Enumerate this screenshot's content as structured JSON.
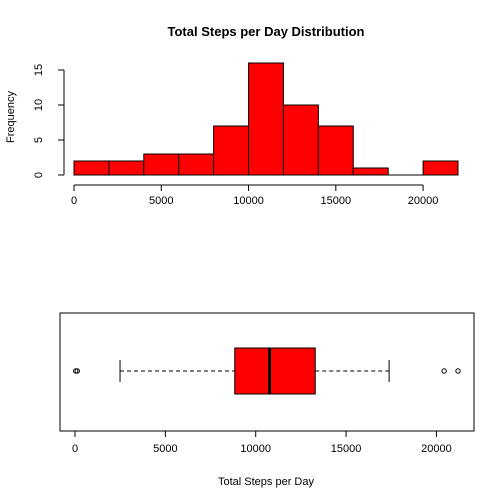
{
  "chart_data": [
    {
      "type": "histogram",
      "title": "Total Steps per Day Distribution",
      "xlabel": "",
      "ylabel": "Frequency",
      "color": "#ff0000",
      "bins": [
        {
          "from": 0,
          "to": 2000,
          "count": 2
        },
        {
          "from": 2000,
          "to": 4000,
          "count": 2
        },
        {
          "from": 4000,
          "to": 6000,
          "count": 3
        },
        {
          "from": 6000,
          "to": 8000,
          "count": 3
        },
        {
          "from": 8000,
          "to": 10000,
          "count": 7
        },
        {
          "from": 10000,
          "to": 12000,
          "count": 16
        },
        {
          "from": 12000,
          "to": 14000,
          "count": 10
        },
        {
          "from": 14000,
          "to": 16000,
          "count": 7
        },
        {
          "from": 16000,
          "to": 18000,
          "count": 1
        },
        {
          "from": 18000,
          "to": 20000,
          "count": 0
        },
        {
          "from": 20000,
          "to": 22000,
          "count": 2
        }
      ],
      "xticks": [
        0,
        5000,
        10000,
        15000,
        20000
      ],
      "yticks": [
        0,
        5,
        10,
        15
      ],
      "xlim": [
        0,
        22000
      ],
      "ylim": [
        0,
        16
      ]
    },
    {
      "type": "boxplot",
      "orientation": "horizontal",
      "xlabel": "Total Steps per Day",
      "color": "#ff0000",
      "stats": {
        "whisker_low": 2492,
        "q1": 8841,
        "median": 10765,
        "q3": 13294,
        "whisker_high": 17382
      },
      "outliers": [
        41,
        126,
        20427,
        21194
      ],
      "xticks": [
        0,
        5000,
        10000,
        15000,
        20000
      ],
      "xlim": [
        0,
        21194
      ]
    }
  ]
}
